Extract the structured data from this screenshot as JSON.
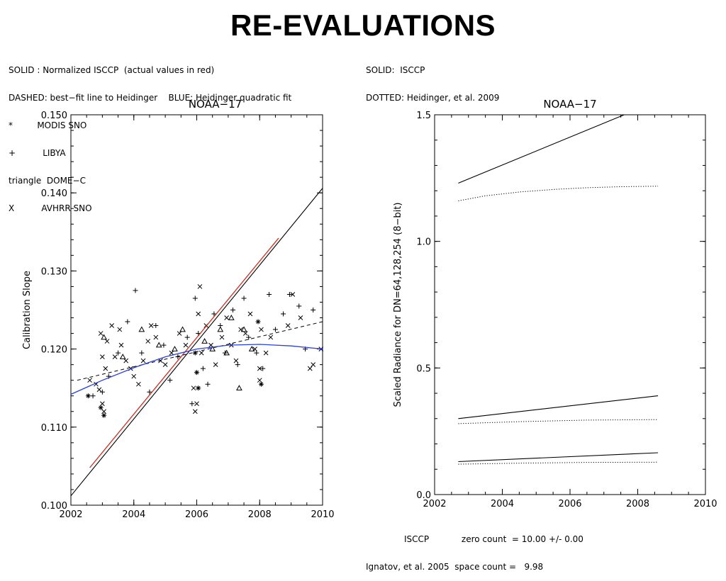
{
  "page": {
    "title": "RE-EVALUATIONS"
  },
  "left_legend": [
    "SOLID : Normalized ISCCP  (actual values in red)",
    "DASHED: best−fit line to Heidinger    BLUE: Heidinger quadratic fit",
    "*         MODIS SNO",
    "+          LIBYA",
    "triangle  DOME−C",
    "X          AVHRR SNO"
  ],
  "right_legend": [
    "SOLID:  ISCCP",
    "DOTTED: Heidinger, et al. 2009"
  ],
  "footer": {
    "line1": "ISCCP            zero count  = 10.00 +/- 0.00",
    "line2": "Ignatov, et al. 2005  space count =   9.98"
  },
  "colors": {
    "red": "#d42a1e",
    "blue": "#2a3fe0",
    "black": "#000000"
  },
  "chart_data": {
    "0": {
      "type": "scatter",
      "title": "NOAA−17",
      "xlabel": "",
      "ylabel": "Calibration Slope",
      "xlim": [
        2002,
        2010
      ],
      "ylim": [
        0.1,
        0.15
      ],
      "xticks": [
        "2002",
        "2004",
        "2006",
        "2008",
        "2010"
      ],
      "yticks": [
        "0.100",
        "0.110",
        "0.120",
        "0.130",
        "0.140",
        "0.150"
      ],
      "series": [
        {
          "style": "solid-black",
          "x": [
            2002.0,
            2010.0
          ],
          "y": [
            0.1012,
            0.1406
          ]
        },
        {
          "style": "solid-red",
          "x": [
            2002.6,
            2008.6
          ],
          "y": [
            0.1048,
            0.1342
          ]
        },
        {
          "style": "dashed-black",
          "x": [
            2002.2,
            2010.0
          ],
          "y": [
            0.116,
            0.1235
          ]
        },
        {
          "style": "solid-blue",
          "x": [
            2002.0,
            2003.0,
            2004.0,
            2005.0,
            2006.0,
            2007.0,
            2008.0,
            2009.0,
            2010.0
          ],
          "y": [
            0.1142,
            0.116,
            0.1176,
            0.119,
            0.12,
            0.1205,
            0.1206,
            0.1204,
            0.12
          ]
        }
      ],
      "points_x": [
        [
          2002.6,
          0.116
        ],
        [
          2002.8,
          0.1155
        ],
        [
          2002.9,
          0.1148
        ],
        [
          2002.95,
          0.122
        ],
        [
          2003.0,
          0.119
        ],
        [
          2003.0,
          0.113
        ],
        [
          2003.05,
          0.112
        ],
        [
          2003.1,
          0.1175
        ],
        [
          2003.15,
          0.121
        ],
        [
          2003.3,
          0.123
        ],
        [
          2003.4,
          0.119
        ],
        [
          2003.55,
          0.1225
        ],
        [
          2003.6,
          0.1205
        ],
        [
          2003.75,
          0.1185
        ],
        [
          2003.9,
          0.1175
        ],
        [
          2004.0,
          0.1165
        ],
        [
          2004.15,
          0.1155
        ],
        [
          2004.3,
          0.1185
        ],
        [
          2004.45,
          0.121
        ],
        [
          2004.55,
          0.123
        ],
        [
          2004.7,
          0.1215
        ],
        [
          2004.85,
          0.1185
        ],
        [
          2005.0,
          0.118
        ],
        [
          2005.2,
          0.1195
        ],
        [
          2005.45,
          0.122
        ],
        [
          2005.65,
          0.1205
        ],
        [
          2005.9,
          0.115
        ],
        [
          2005.95,
          0.112
        ],
        [
          2006.0,
          0.113
        ],
        [
          2006.05,
          0.1245
        ],
        [
          2006.1,
          0.128
        ],
        [
          2006.15,
          0.1195
        ],
        [
          2006.3,
          0.123
        ],
        [
          2006.45,
          0.1205
        ],
        [
          2006.6,
          0.118
        ],
        [
          2006.8,
          0.1215
        ],
        [
          2006.95,
          0.124
        ],
        [
          2007.1,
          0.1205
        ],
        [
          2007.25,
          0.1185
        ],
        [
          2007.4,
          0.1225
        ],
        [
          2007.55,
          0.122
        ],
        [
          2007.7,
          0.1245
        ],
        [
          2007.85,
          0.12
        ],
        [
          2008.0,
          0.116
        ],
        [
          2008.0,
          0.1175
        ],
        [
          2008.05,
          0.1225
        ],
        [
          2008.2,
          0.1195
        ],
        [
          2008.35,
          0.1215
        ],
        [
          2008.9,
          0.123
        ],
        [
          2009.05,
          0.127
        ],
        [
          2009.3,
          0.124
        ],
        [
          2009.6,
          0.1175
        ],
        [
          2009.7,
          0.118
        ],
        [
          2009.95,
          0.12
        ]
      ],
      "points_plus": [
        [
          2002.7,
          0.114
        ],
        [
          2003.0,
          0.1145
        ],
        [
          2003.2,
          0.1165
        ],
        [
          2003.5,
          0.1195
        ],
        [
          2003.8,
          0.1235
        ],
        [
          2004.05,
          0.1275
        ],
        [
          2004.25,
          0.1195
        ],
        [
          2004.5,
          0.1145
        ],
        [
          2004.7,
          0.123
        ],
        [
          2004.95,
          0.1205
        ],
        [
          2005.15,
          0.116
        ],
        [
          2005.4,
          0.119
        ],
        [
          2005.7,
          0.1215
        ],
        [
          2005.85,
          0.113
        ],
        [
          2005.95,
          0.1265
        ],
        [
          2006.05,
          0.122
        ],
        [
          2006.2,
          0.1175
        ],
        [
          2006.35,
          0.1155
        ],
        [
          2006.55,
          0.1245
        ],
        [
          2006.75,
          0.123
        ],
        [
          2006.9,
          0.1195
        ],
        [
          2007.15,
          0.125
        ],
        [
          2007.3,
          0.118
        ],
        [
          2007.5,
          0.1265
        ],
        [
          2007.65,
          0.1215
        ],
        [
          2007.9,
          0.1195
        ],
        [
          2008.1,
          0.1175
        ],
        [
          2008.3,
          0.127
        ],
        [
          2008.5,
          0.1225
        ],
        [
          2008.75,
          0.1245
        ],
        [
          2008.95,
          0.127
        ],
        [
          2009.25,
          0.1255
        ],
        [
          2009.45,
          0.12
        ],
        [
          2009.7,
          0.125
        ]
      ],
      "points_tri": [
        [
          2003.05,
          0.1215
        ],
        [
          2003.65,
          0.119
        ],
        [
          2004.25,
          0.1225
        ],
        [
          2004.8,
          0.1205
        ],
        [
          2005.3,
          0.12
        ],
        [
          2005.55,
          0.1225
        ],
        [
          2006.25,
          0.121
        ],
        [
          2006.5,
          0.12
        ],
        [
          2006.75,
          0.1225
        ],
        [
          2006.95,
          0.1195
        ],
        [
          2007.1,
          0.124
        ],
        [
          2007.35,
          0.115
        ],
        [
          2007.5,
          0.1225
        ],
        [
          2007.75,
          0.12
        ]
      ],
      "points_star": [
        [
          2002.55,
          0.114
        ],
        [
          2002.95,
          0.1125
        ],
        [
          2003.05,
          0.1115
        ],
        [
          2005.95,
          0.1195
        ],
        [
          2006.0,
          0.117
        ],
        [
          2006.05,
          0.115
        ],
        [
          2007.95,
          0.1235
        ],
        [
          2008.05,
          0.1155
        ]
      ]
    },
    "1": {
      "type": "line",
      "title": "NOAA−17",
      "xlabel": "",
      "ylabel": "Scaled Radiance for DN=64,128,254 (8−bit)",
      "xlim": [
        2002,
        2010
      ],
      "ylim": [
        0.0,
        1.5
      ],
      "xticks": [
        "2002",
        "2004",
        "2006",
        "2008",
        "2010"
      ],
      "yticks": [
        "0.0",
        "0.5",
        "1.0",
        "1.5"
      ],
      "series": [
        {
          "style": "solid",
          "x": [
            2002.7,
            2007.6
          ],
          "y": [
            1.23,
            1.5
          ]
        },
        {
          "style": "dotted",
          "x": [
            2002.7,
            2003.5,
            2004.5,
            2005.5,
            2006.5,
            2007.5,
            2008.6
          ],
          "y": [
            1.16,
            1.18,
            1.195,
            1.205,
            1.212,
            1.216,
            1.218
          ]
        },
        {
          "style": "solid",
          "x": [
            2002.7,
            2008.6
          ],
          "y": [
            0.3,
            0.39
          ]
        },
        {
          "style": "dotted",
          "x": [
            2002.7,
            2004.5,
            2006.5,
            2008.6
          ],
          "y": [
            0.28,
            0.288,
            0.294,
            0.296
          ]
        },
        {
          "style": "solid",
          "x": [
            2002.7,
            2008.6
          ],
          "y": [
            0.13,
            0.165
          ]
        },
        {
          "style": "dotted",
          "x": [
            2002.7,
            2004.5,
            2006.5,
            2008.6
          ],
          "y": [
            0.12,
            0.124,
            0.127,
            0.128
          ]
        }
      ]
    }
  }
}
